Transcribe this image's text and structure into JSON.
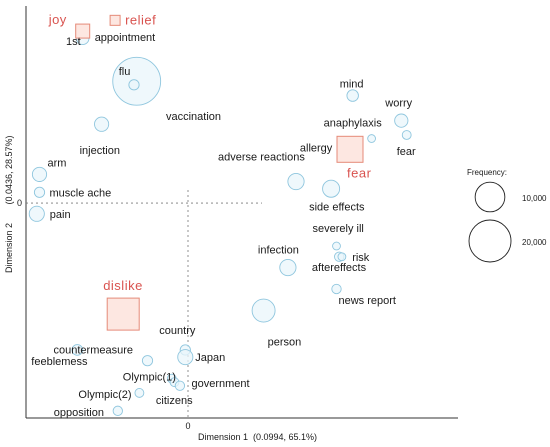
{
  "chart_data": {
    "type": "scatter",
    "title": "",
    "xlabel": "Dimension 1",
    "xlabel_stats": "(0.0994,    65.1%)",
    "ylabel": "Dimension 2",
    "ylabel_stats": "(0.0436,   28.57%)",
    "xlim": [
      -0.6,
      1.0
    ],
    "ylim": [
      -0.6,
      0.55
    ],
    "x_tick": "0",
    "y_tick": "0",
    "words": [
      {
        "label": "appointment",
        "x": -0.39,
        "y": 0.46,
        "freq": 1800
      },
      {
        "label": "1st",
        "x": -0.4,
        "y": 0.48,
        "freq": 800
      },
      {
        "label": "flu",
        "x": -0.19,
        "y": 0.34,
        "freq": 26000
      },
      {
        "label": "vaccination",
        "x": -0.2,
        "y": 0.33,
        "freq": 1200
      },
      {
        "label": "injection",
        "x": -0.32,
        "y": 0.22,
        "freq": 2300
      },
      {
        "label": "arm",
        "x": -0.55,
        "y": 0.08,
        "freq": 2300
      },
      {
        "label": "muscle ache",
        "x": -0.55,
        "y": 0.03,
        "freq": 1200
      },
      {
        "label": "pain",
        "x": -0.56,
        "y": -0.03,
        "freq": 2600
      },
      {
        "label": "mind",
        "x": 0.61,
        "y": 0.3,
        "freq": 1500
      },
      {
        "label": "worry",
        "x": 0.79,
        "y": 0.23,
        "freq": 2000
      },
      {
        "label": "anaphylaxis",
        "x": 0.68,
        "y": 0.18,
        "freq": 700
      },
      {
        "label": "fear",
        "x": 0.81,
        "y": 0.19,
        "freq": 900
      },
      {
        "label": "allergy",
        "x": 0.57,
        "y": 0.15,
        "freq": 1000
      },
      {
        "label": "adverse reactions",
        "x": 0.4,
        "y": 0.06,
        "freq": 3000
      },
      {
        "label": "side effects",
        "x": 0.53,
        "y": 0.04,
        "freq": 3300
      },
      {
        "label": "severely ill",
        "x": 0.55,
        "y": -0.12,
        "freq": 700
      },
      {
        "label": "risk",
        "x": 0.56,
        "y": -0.15,
        "freq": 1000
      },
      {
        "label": "infection",
        "x": 0.37,
        "y": -0.18,
        "freq": 3000
      },
      {
        "label": "aftereffects",
        "x": 0.57,
        "y": -0.15,
        "freq": 700
      },
      {
        "label": "news report",
        "x": 0.55,
        "y": -0.24,
        "freq": 1000
      },
      {
        "label": "person",
        "x": 0.28,
        "y": -0.3,
        "freq": 6000
      },
      {
        "label": "country",
        "x": -0.01,
        "y": -0.41,
        "freq": 1200
      },
      {
        "label": "feeblemess",
        "x": -0.41,
        "y": -0.41,
        "freq": 1300
      },
      {
        "label": "countermeasure",
        "x": -0.15,
        "y": -0.44,
        "freq": 1200
      },
      {
        "label": "Japan",
        "x": -0.01,
        "y": -0.43,
        "freq": 2600
      },
      {
        "label": "Olympic(1)",
        "x": -0.06,
        "y": -0.49,
        "freq": 900
      },
      {
        "label": "government",
        "x": -0.05,
        "y": -0.5,
        "freq": 900
      },
      {
        "label": "Olympic(2)",
        "x": -0.18,
        "y": -0.53,
        "freq": 900
      },
      {
        "label": "citizens",
        "x": -0.03,
        "y": -0.51,
        "freq": 1000
      },
      {
        "label": "opposition",
        "x": -0.26,
        "y": -0.58,
        "freq": 1000
      }
    ],
    "emotions": [
      {
        "label": "joy",
        "x": -0.39,
        "y": 0.48,
        "size": 7
      },
      {
        "label": "relief",
        "x": -0.27,
        "y": 0.51,
        "size": 5
      },
      {
        "label": "fear",
        "x": 0.6,
        "y": 0.15,
        "size": 13
      },
      {
        "label": "dislike",
        "x": -0.24,
        "y": -0.31,
        "size": 16
      }
    ],
    "legend": {
      "title": "Frequency:",
      "placement": "right",
      "entries": [
        {
          "label": "10,000",
          "freq": 10000
        },
        {
          "label": "20,000",
          "freq": 20000
        }
      ]
    },
    "colors": {
      "bubble_fill": "#eaf5fb",
      "bubble_stroke": "#8fc6de",
      "emotion_fill": "#fde7e1",
      "emotion_stroke": "#e58a78",
      "emotion_text": "#d9534f"
    }
  }
}
